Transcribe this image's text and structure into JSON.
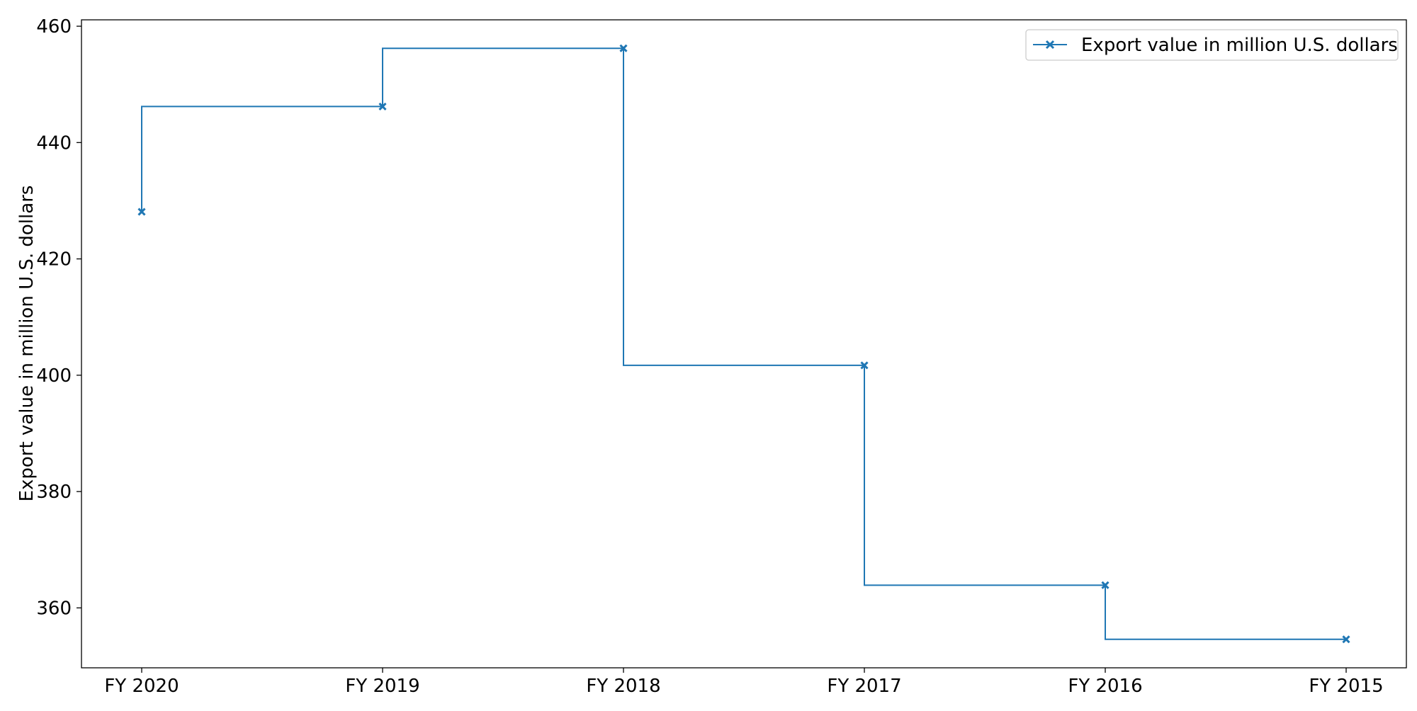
{
  "chart_data": {
    "type": "line",
    "step": "pre",
    "categories": [
      "FY 2020",
      "FY 2019",
      "FY 2018",
      "FY 2017",
      "FY 2016",
      "FY 2015"
    ],
    "series": [
      {
        "name": "Export value in million U.S. dollars",
        "values": [
          428.1,
          446.2,
          456.2,
          401.7,
          363.9,
          354.6
        ],
        "color": "#1f77b4",
        "marker": "x"
      }
    ],
    "title": "",
    "xlabel": "",
    "ylabel": "Export value in million U.S. dollars",
    "ylim": [
      349.7,
      461.1
    ],
    "yticks": [
      360,
      380,
      400,
      420,
      440,
      460
    ],
    "grid": false,
    "legend_position": "top-right"
  }
}
